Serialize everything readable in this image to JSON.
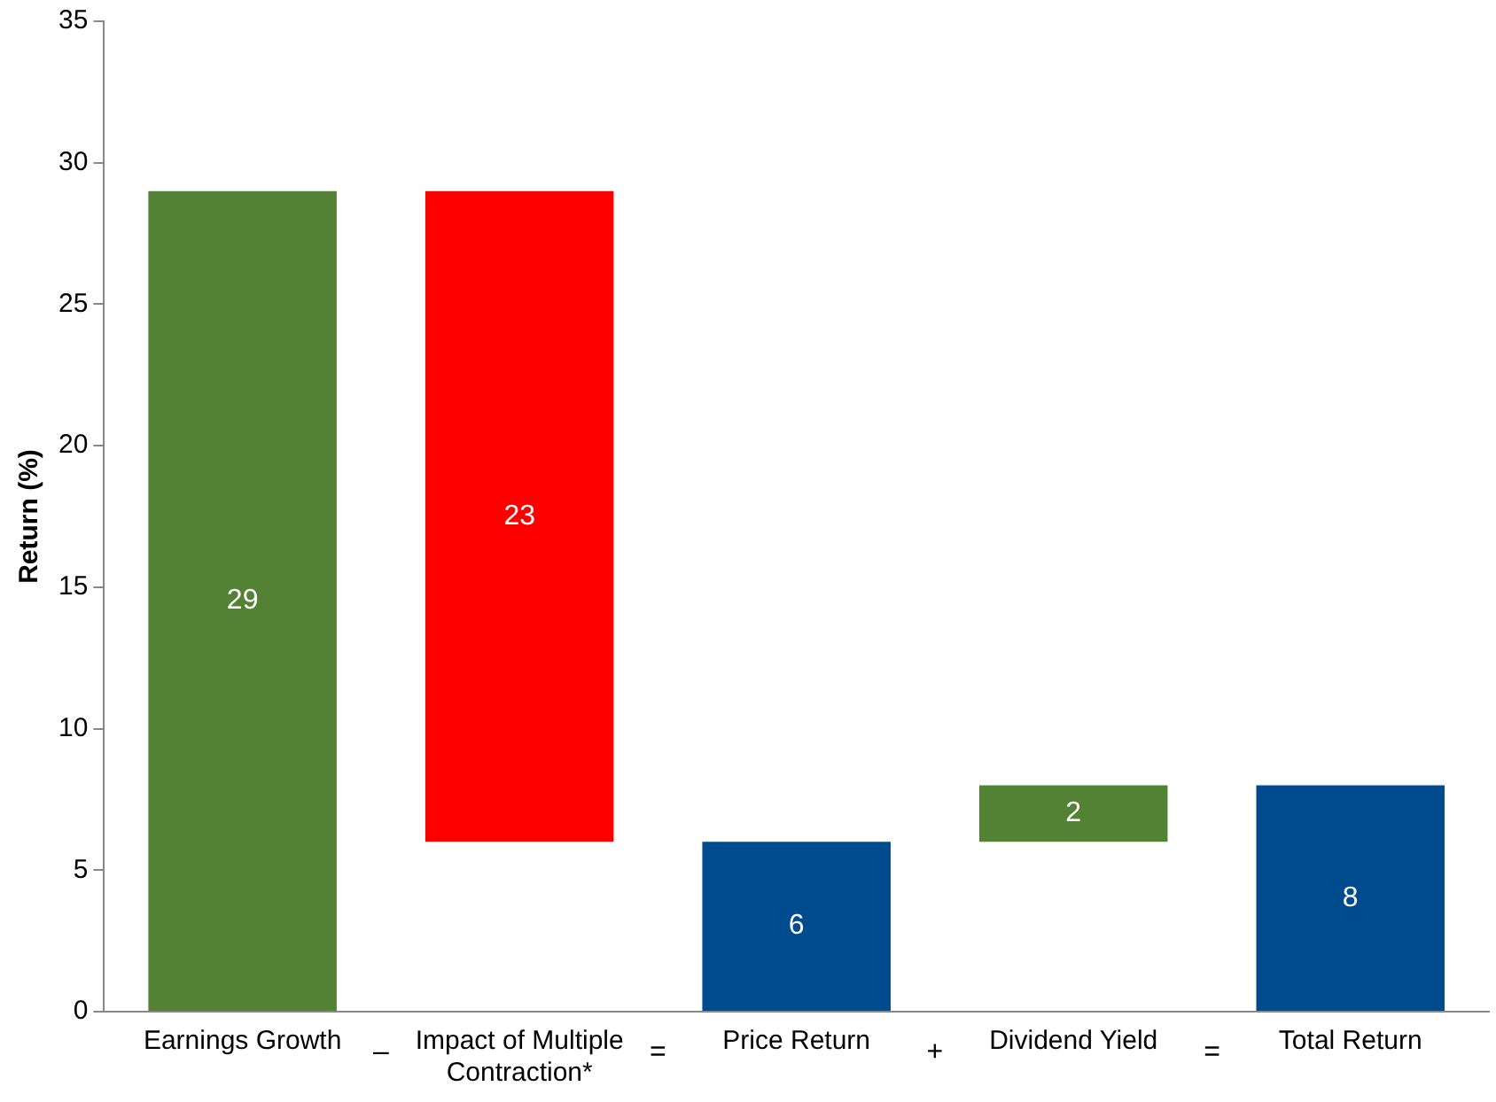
{
  "chart_data": {
    "type": "bar",
    "ylabel": "Return (%)",
    "categories": [
      "Earnings Growth",
      "Impact of Multiple Contraction*",
      "Price Return",
      "Dividend Yield",
      "Total Return"
    ],
    "values": [
      29,
      23,
      6,
      2,
      8
    ],
    "base": [
      0,
      6,
      0,
      6,
      0
    ],
    "colors": [
      "#548235",
      "#ff0000",
      "#004b8d",
      "#548235",
      "#004b8d"
    ],
    "ylim": [
      0,
      35
    ],
    "yticks": [
      0,
      5,
      10,
      15,
      20,
      25,
      30,
      35
    ],
    "data_labels": true,
    "grid": false,
    "legend": false,
    "annotations": [
      "–",
      "=",
      "+",
      "="
    ]
  }
}
